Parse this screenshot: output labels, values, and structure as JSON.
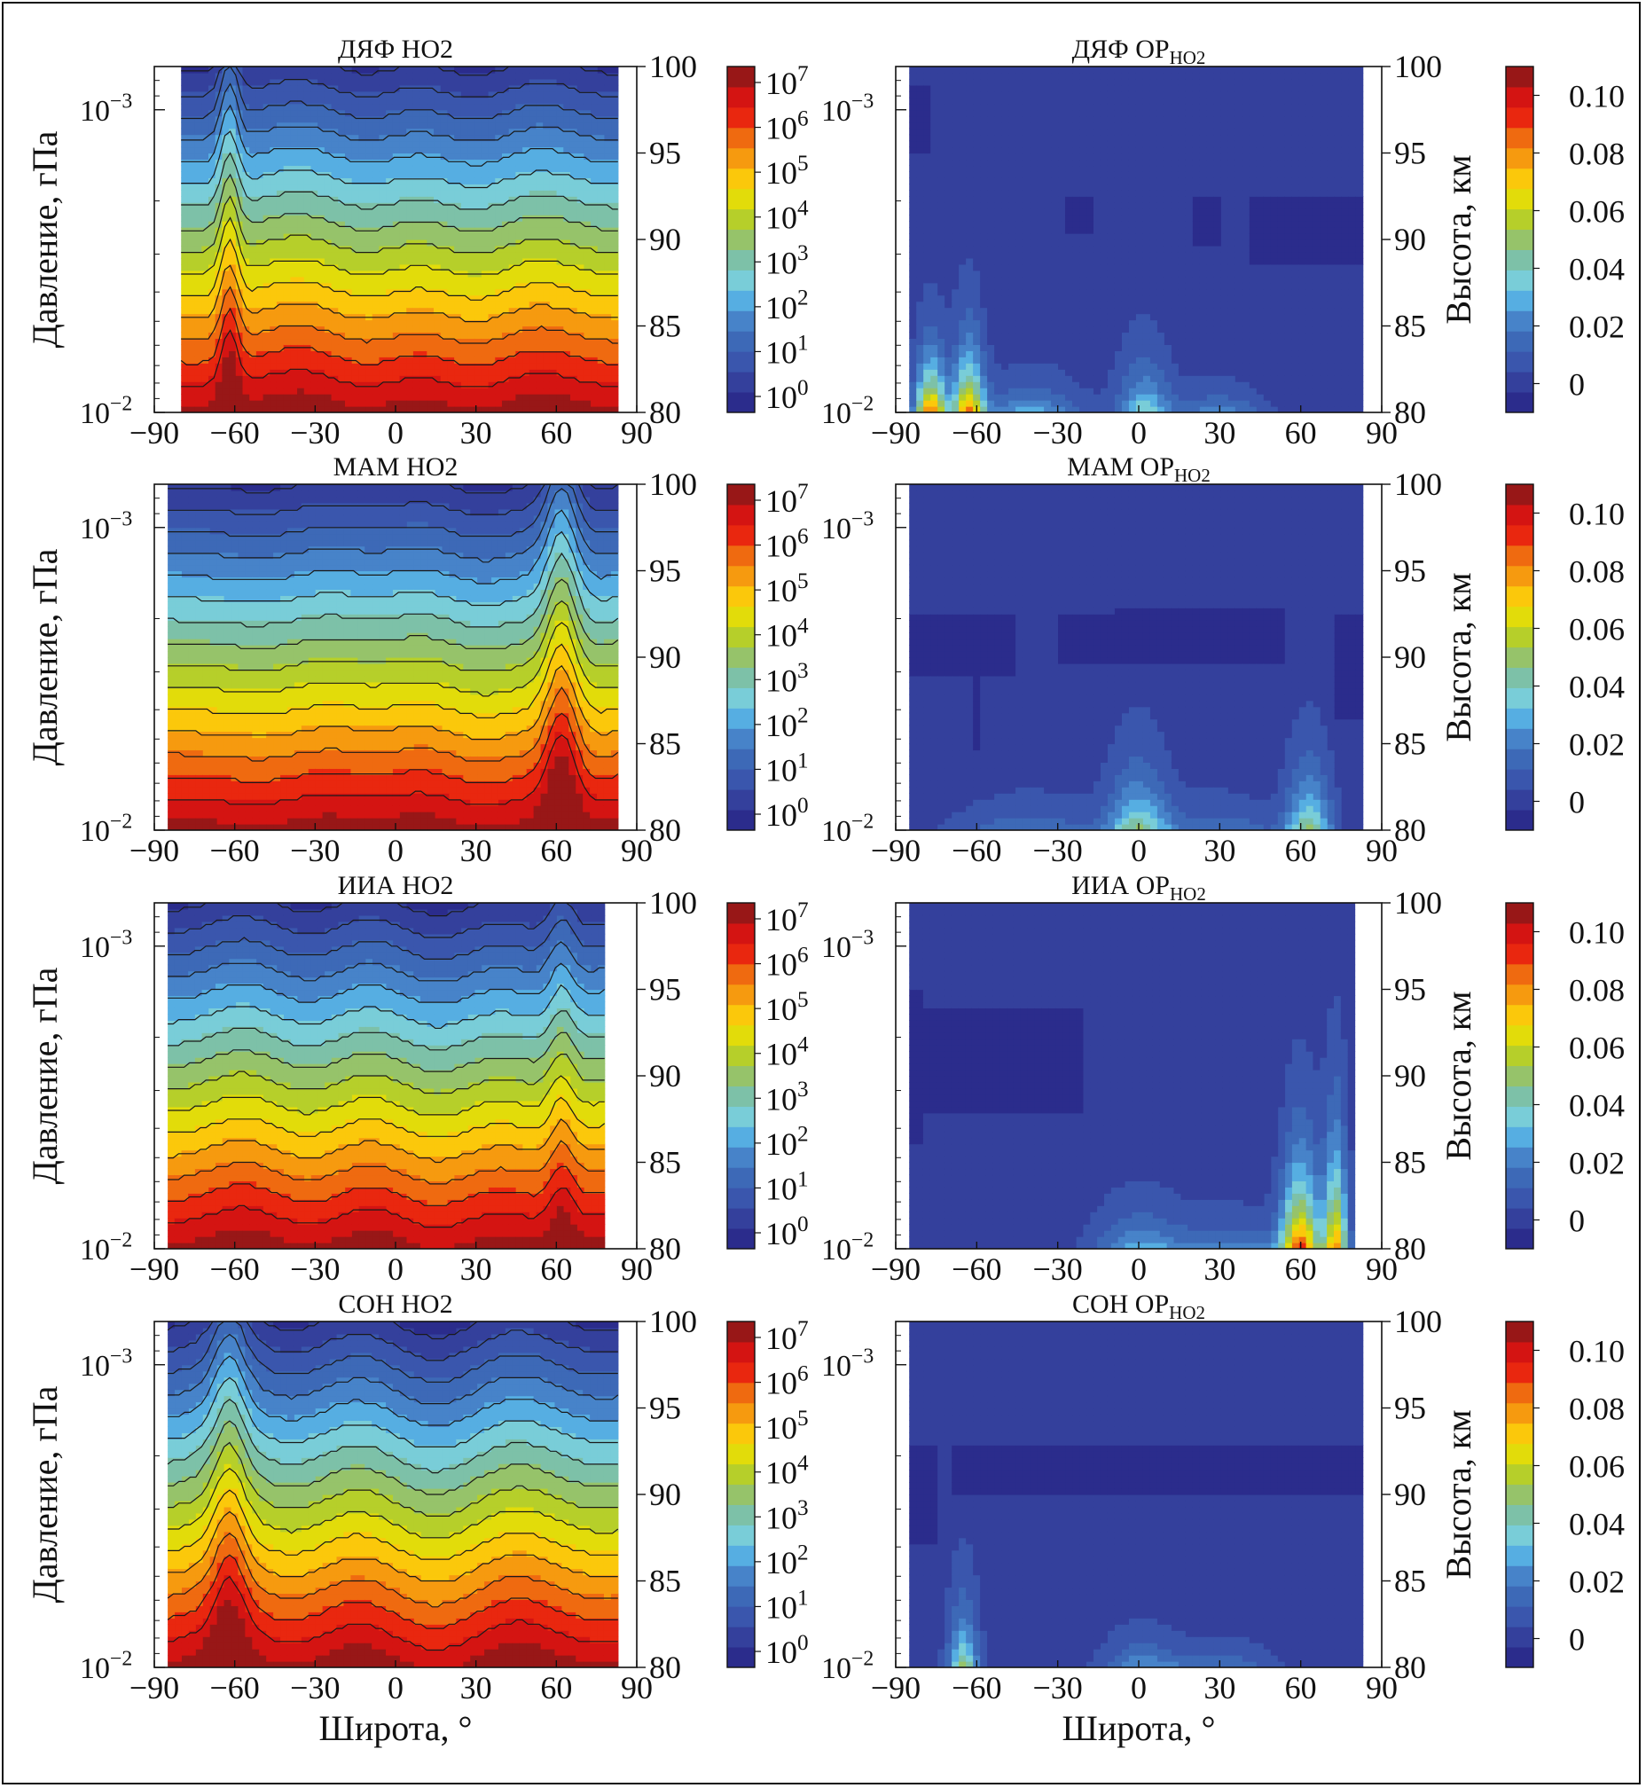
{
  "colors": {
    "scale": [
      "#2b2c8c",
      "#34409c",
      "#3a56ad",
      "#3d69b7",
      "#4783c9",
      "#56aee2",
      "#79cdd8",
      "#7dc1a8",
      "#96c36a",
      "#b6cf2a",
      "#e2dc0a",
      "#fbc80b",
      "#f69a0f",
      "#ef6a10",
      "#e9270f",
      "#d41412",
      "#981717"
    ]
  },
  "chart_data": [
    {
      "id": "p1",
      "type": "heatmap",
      "title": "ДЯФ HO2",
      "title_main": "ДЯФ HO2",
      "title_sub": "",
      "xlabel": "",
      "ylabel": "Давление, гПа",
      "y2label": "",
      "x_ticks": [
        "−90",
        "−60",
        "−30",
        "0",
        "30",
        "60",
        "90"
      ],
      "xlim": [
        -90,
        90
      ],
      "y_ticks": [
        "10−3",
        "10−2"
      ],
      "y_tick_values": [
        0.001,
        0.01
      ],
      "y_scale": "log",
      "alt_ticks": [
        "100",
        "95",
        "90",
        "85",
        "80"
      ],
      "alt_range_km": [
        80,
        100
      ],
      "colorbar": {
        "scale": "log",
        "ticks": [
          "107",
          "106",
          "105",
          "104",
          "103",
          "102",
          "101",
          "100"
        ],
        "range": [
          1,
          10000000
        ]
      },
      "lat_range": [
        -80,
        83
      ],
      "field": "HO2",
      "profile": [
        -80,
        -65,
        -60,
        -48,
        -20,
        0,
        15,
        45,
        60,
        83
      ],
      "peaks": [
        {
          "lat": -62,
          "amp": 2.4,
          "width": 3
        }
      ],
      "level_at_top": 14,
      "level_slope": 1.0
    },
    {
      "id": "p2",
      "type": "heatmap",
      "title": "ДЯФ ОР HO2",
      "title_main": "ДЯФ ОР",
      "title_sub": "HO2",
      "xlabel": "",
      "ylabel": "",
      "y2label": "Высота, км",
      "x_ticks": [
        "−90",
        "−60",
        "−30",
        "0",
        "30",
        "60",
        "90"
      ],
      "xlim": [
        -90,
        90
      ],
      "y_ticks": [
        "10−3",
        "10−2"
      ],
      "y_tick_values": [
        0.001,
        0.01
      ],
      "y_scale": "log",
      "alt_ticks": [
        "100",
        "95",
        "90",
        "85",
        "80"
      ],
      "alt_range_km": [
        80,
        100
      ],
      "colorbar": {
        "scale": "linear",
        "ticks": [
          "0.10",
          "0.08",
          "0.06",
          "0.04",
          "0.02",
          "0"
        ],
        "range": [
          -0.01,
          0.11
        ]
      },
      "lat_range": [
        -85,
        83
      ],
      "field": "OR",
      "bumps": [
        {
          "lat": -77,
          "amp": 0.09,
          "width": 4,
          "height": 2.5
        },
        {
          "lat": -63,
          "amp": 0.08,
          "width": 4,
          "height": 3
        },
        {
          "lat": -40,
          "amp": 0.03,
          "width": 14,
          "height": 1.5
        },
        {
          "lat": 2,
          "amp": 0.04,
          "width": 7,
          "height": 2.5
        },
        {
          "lat": 30,
          "amp": 0.025,
          "width": 12,
          "height": 1.2
        }
      ],
      "negative_areas": [
        {
          "lat_from": -84,
          "lat_to": -78,
          "alt_from": 95,
          "alt_to": 99
        },
        {
          "lat_from": -28,
          "lat_to": -18,
          "alt_from": 90.5,
          "alt_to": 92.5
        },
        {
          "lat_from": 19,
          "lat_to": 30,
          "alt_from": 89.5,
          "alt_to": 92.5
        },
        {
          "lat_from": 40,
          "lat_to": 83,
          "alt_from": 88.5,
          "alt_to": 92.5
        }
      ]
    },
    {
      "id": "p3",
      "type": "heatmap",
      "title": "МАМ HO2",
      "title_main": "МАМ HO2",
      "title_sub": "",
      "xlabel": "",
      "ylabel": "Давление, гПа",
      "y2label": "",
      "x_ticks": [
        "−90",
        "−60",
        "−30",
        "0",
        "30",
        "60",
        "90"
      ],
      "xlim": [
        -90,
        90
      ],
      "y_ticks": [
        "10−3",
        "10−2"
      ],
      "y_tick_values": [
        0.001,
        0.01
      ],
      "y_scale": "log",
      "alt_ticks": [
        "100",
        "95",
        "90",
        "85",
        "80"
      ],
      "alt_range_km": [
        80,
        100
      ],
      "colorbar": {
        "scale": "log",
        "ticks": [
          "107",
          "106",
          "105",
          "104",
          "103",
          "102",
          "101",
          "100"
        ],
        "range": [
          1,
          10000000
        ]
      },
      "lat_range": [
        -85,
        83
      ],
      "field": "HO2",
      "profile": [
        -85,
        -30,
        -15,
        0,
        20,
        45,
        60,
        75,
        83
      ],
      "peaks": [
        {
          "lat": 62,
          "amp": 3.0,
          "width": 5
        }
      ],
      "level_at_top": 15,
      "level_slope": 1.0
    },
    {
      "id": "p4",
      "type": "heatmap",
      "title": "МАМ ОР HO2",
      "title_main": "МАМ ОР",
      "title_sub": "HO2",
      "xlabel": "",
      "ylabel": "",
      "y2label": "Высота, км",
      "x_ticks": [
        "−90",
        "−60",
        "−30",
        "0",
        "30",
        "60",
        "90"
      ],
      "xlim": [
        -90,
        90
      ],
      "y_ticks": [
        "10−3",
        "10−2"
      ],
      "y_tick_values": [
        0.001,
        0.01
      ],
      "y_scale": "log",
      "alt_ticks": [
        "100",
        "95",
        "90",
        "85",
        "80"
      ],
      "alt_range_km": [
        80,
        100
      ],
      "colorbar": {
        "scale": "linear",
        "ticks": [
          "0.10",
          "0.08",
          "0.06",
          "0.04",
          "0.02",
          "0"
        ],
        "range": [
          -0.01,
          0.11
        ]
      },
      "lat_range": [
        -85,
        83
      ],
      "field": "OR",
      "bumps": [
        {
          "lat": 0,
          "amp": 0.045,
          "width": 8,
          "height": 3
        },
        {
          "lat": 63,
          "amp": 0.05,
          "width": 6,
          "height": 3
        },
        {
          "lat": -40,
          "amp": 0.02,
          "width": 20,
          "height": 1.5
        },
        {
          "lat": 30,
          "amp": 0.02,
          "width": 15,
          "height": 1.5
        }
      ],
      "negative_areas": [
        {
          "lat_from": -85,
          "lat_to": -45,
          "alt_from": 89,
          "alt_to": 92.5
        },
        {
          "lat_from": -62,
          "lat_to": -58,
          "alt_from": 84.5,
          "alt_to": 89
        },
        {
          "lat_from": -30,
          "lat_to": -7,
          "alt_from": 89.5,
          "alt_to": 92.5
        },
        {
          "lat_from": -10,
          "lat_to": 55,
          "alt_from": 89.5,
          "alt_to": 93
        },
        {
          "lat_from": 72,
          "lat_to": 83,
          "alt_from": 86.5,
          "alt_to": 92.5
        }
      ]
    },
    {
      "id": "p5",
      "type": "heatmap",
      "title": "ИИА HO2",
      "title_main": "ИИА HO2",
      "title_sub": "",
      "xlabel": "",
      "ylabel": "Давление, гПа",
      "y2label": "",
      "x_ticks": [
        "−90",
        "−60",
        "−30",
        "0",
        "30",
        "60",
        "90"
      ],
      "xlim": [
        -90,
        90
      ],
      "y_ticks": [
        "10−3",
        "10−2"
      ],
      "y_tick_values": [
        0.001,
        0.01
      ],
      "y_scale": "log",
      "alt_ticks": [
        "100",
        "95",
        "90",
        "85",
        "80"
      ],
      "alt_range_km": [
        80,
        100
      ],
      "colorbar": {
        "scale": "log",
        "ticks": [
          "107",
          "106",
          "105",
          "104",
          "103",
          "102",
          "101",
          "100"
        ],
        "range": [
          1,
          10000000
        ]
      },
      "lat_range": [
        -85,
        78
      ],
      "field": "HO2",
      "profile": [
        -85,
        -65,
        -45,
        -20,
        0,
        30,
        50,
        62,
        78
      ],
      "peaks": [
        {
          "lat": 62,
          "amp": 1.5,
          "width": 4
        }
      ],
      "level_at_top": 15,
      "level_slope": 1.0
    },
    {
      "id": "p6",
      "type": "heatmap",
      "title": "ИИА ОР HO2",
      "title_main": "ИИА ОР",
      "title_sub": "HO2",
      "xlabel": "",
      "ylabel": "",
      "y2label": "Высота, км",
      "x_ticks": [
        "−90",
        "−60",
        "−30",
        "0",
        "30",
        "60",
        "90"
      ],
      "xlim": [
        -90,
        90
      ],
      "y_ticks": [
        "10−3",
        "10−2"
      ],
      "y_tick_values": [
        0.001,
        0.01
      ],
      "y_scale": "log",
      "alt_ticks": [
        "100",
        "95",
        "90",
        "85",
        "80"
      ],
      "alt_range_km": [
        80,
        100
      ],
      "colorbar": {
        "scale": "linear",
        "ticks": [
          "0.10",
          "0.08",
          "0.06",
          "0.04",
          "0.02",
          "0"
        ],
        "range": [
          -0.01,
          0.11
        ]
      },
      "lat_range": [
        -85,
        80
      ],
      "field": "OR",
      "bumps": [
        {
          "lat": 60,
          "amp": 0.09,
          "width": 5,
          "height": 4
        },
        {
          "lat": 73,
          "amp": 0.08,
          "width": 3,
          "height": 5
        },
        {
          "lat": 0,
          "amp": 0.03,
          "width": 12,
          "height": 2
        },
        {
          "lat": 35,
          "amp": 0.025,
          "width": 15,
          "height": 1.5
        }
      ],
      "negative_areas": [
        {
          "lat_from": -85,
          "lat_to": -80,
          "alt_from": 86,
          "alt_to": 95
        },
        {
          "lat_from": -80,
          "lat_to": -20,
          "alt_from": 88,
          "alt_to": 94
        }
      ]
    },
    {
      "id": "p7",
      "type": "heatmap",
      "title": "СОН HO2",
      "title_main": "СОН HO2",
      "title_sub": "",
      "xlabel": "Широта, °",
      "ylabel": "Давление, гПа",
      "y2label": "",
      "x_ticks": [
        "−90",
        "−60",
        "−30",
        "0",
        "30",
        "60",
        "90"
      ],
      "xlim": [
        -90,
        90
      ],
      "y_ticks": [
        "10−3",
        "10−2"
      ],
      "y_tick_values": [
        0.001,
        0.01
      ],
      "y_scale": "log",
      "alt_ticks": [
        "100",
        "95",
        "90",
        "85",
        "80"
      ],
      "alt_range_km": [
        80,
        100
      ],
      "colorbar": {
        "scale": "log",
        "ticks": [
          "107",
          "106",
          "105",
          "104",
          "103",
          "102",
          "101",
          "100"
        ],
        "range": [
          1,
          10000000
        ]
      },
      "lat_range": [
        -85,
        83
      ],
      "field": "HO2",
      "profile": [
        -85,
        -70,
        -50,
        -30,
        0,
        30,
        60,
        83
      ],
      "peaks": [
        {
          "lat": -62,
          "amp": 2.2,
          "width": 5
        }
      ],
      "level_at_top": 14,
      "level_slope": 1.0
    },
    {
      "id": "p8",
      "type": "heatmap",
      "title": "СОН ОР HO2",
      "title_main": "СОН ОР",
      "title_sub": "HO2",
      "xlabel": "Широта, °",
      "ylabel": "",
      "y2label": "Высота, км",
      "x_ticks": [
        "−90",
        "−60",
        "−30",
        "0",
        "30",
        "60",
        "90"
      ],
      "xlim": [
        -90,
        90
      ],
      "y_ticks": [
        "10−3",
        "10−2"
      ],
      "y_tick_values": [
        0.001,
        0.01
      ],
      "y_scale": "log",
      "alt_ticks": [
        "100",
        "95",
        "90",
        "85",
        "80"
      ],
      "alt_range_km": [
        80,
        100
      ],
      "colorbar": {
        "scale": "linear",
        "ticks": [
          "0.10",
          "0.08",
          "0.06",
          "0.04",
          "0.02",
          "0"
        ],
        "range": [
          -0.01,
          0.11
        ]
      },
      "lat_range": [
        -85,
        83
      ],
      "field": "OR",
      "bumps": [
        {
          "lat": -65,
          "amp": 0.05,
          "width": 4,
          "height": 3
        },
        {
          "lat": 0,
          "amp": 0.025,
          "width": 10,
          "height": 1.5
        },
        {
          "lat": 30,
          "amp": 0.02,
          "width": 15,
          "height": 1.2
        }
      ],
      "negative_areas": [
        {
          "lat_from": -85,
          "lat_to": -75,
          "alt_from": 87,
          "alt_to": 93
        },
        {
          "lat_from": -70,
          "lat_to": 82,
          "alt_from": 90,
          "alt_to": 93
        }
      ]
    }
  ]
}
